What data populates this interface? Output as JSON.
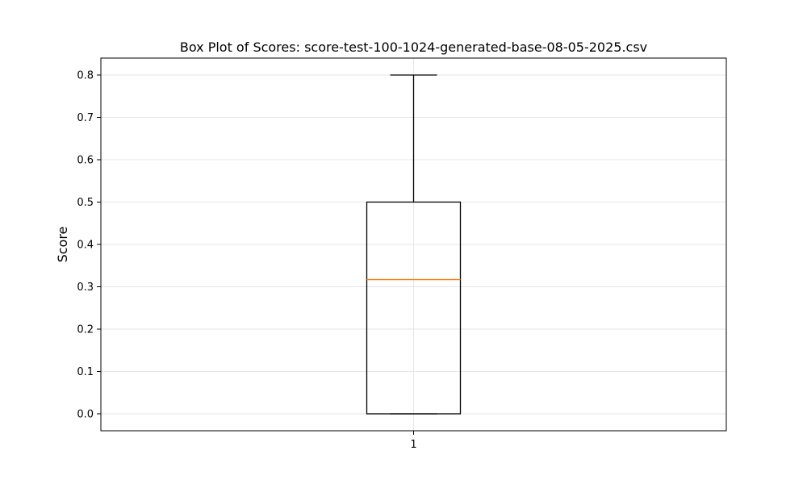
{
  "chart_data": {
    "type": "box",
    "title": "Box Plot of Scores: score-test-100-1024-generated-base-08-05-2025.csv",
    "xlabel": "",
    "ylabel": "Score",
    "categories": [
      "1"
    ],
    "yticks": [
      "0.0",
      "0.1",
      "0.2",
      "0.3",
      "0.4",
      "0.5",
      "0.6",
      "0.7",
      "0.8"
    ],
    "ylim": [
      -0.04,
      0.84
    ],
    "grid": true,
    "boxes": [
      {
        "category": "1",
        "whisker_low": 0.0,
        "q1": 0.0,
        "median": 0.317,
        "q3": 0.5,
        "whisker_high": 0.8
      }
    ],
    "colors": {
      "box": "#000000",
      "median": "#ff7f0e",
      "grid": "#e6e6e6"
    }
  }
}
